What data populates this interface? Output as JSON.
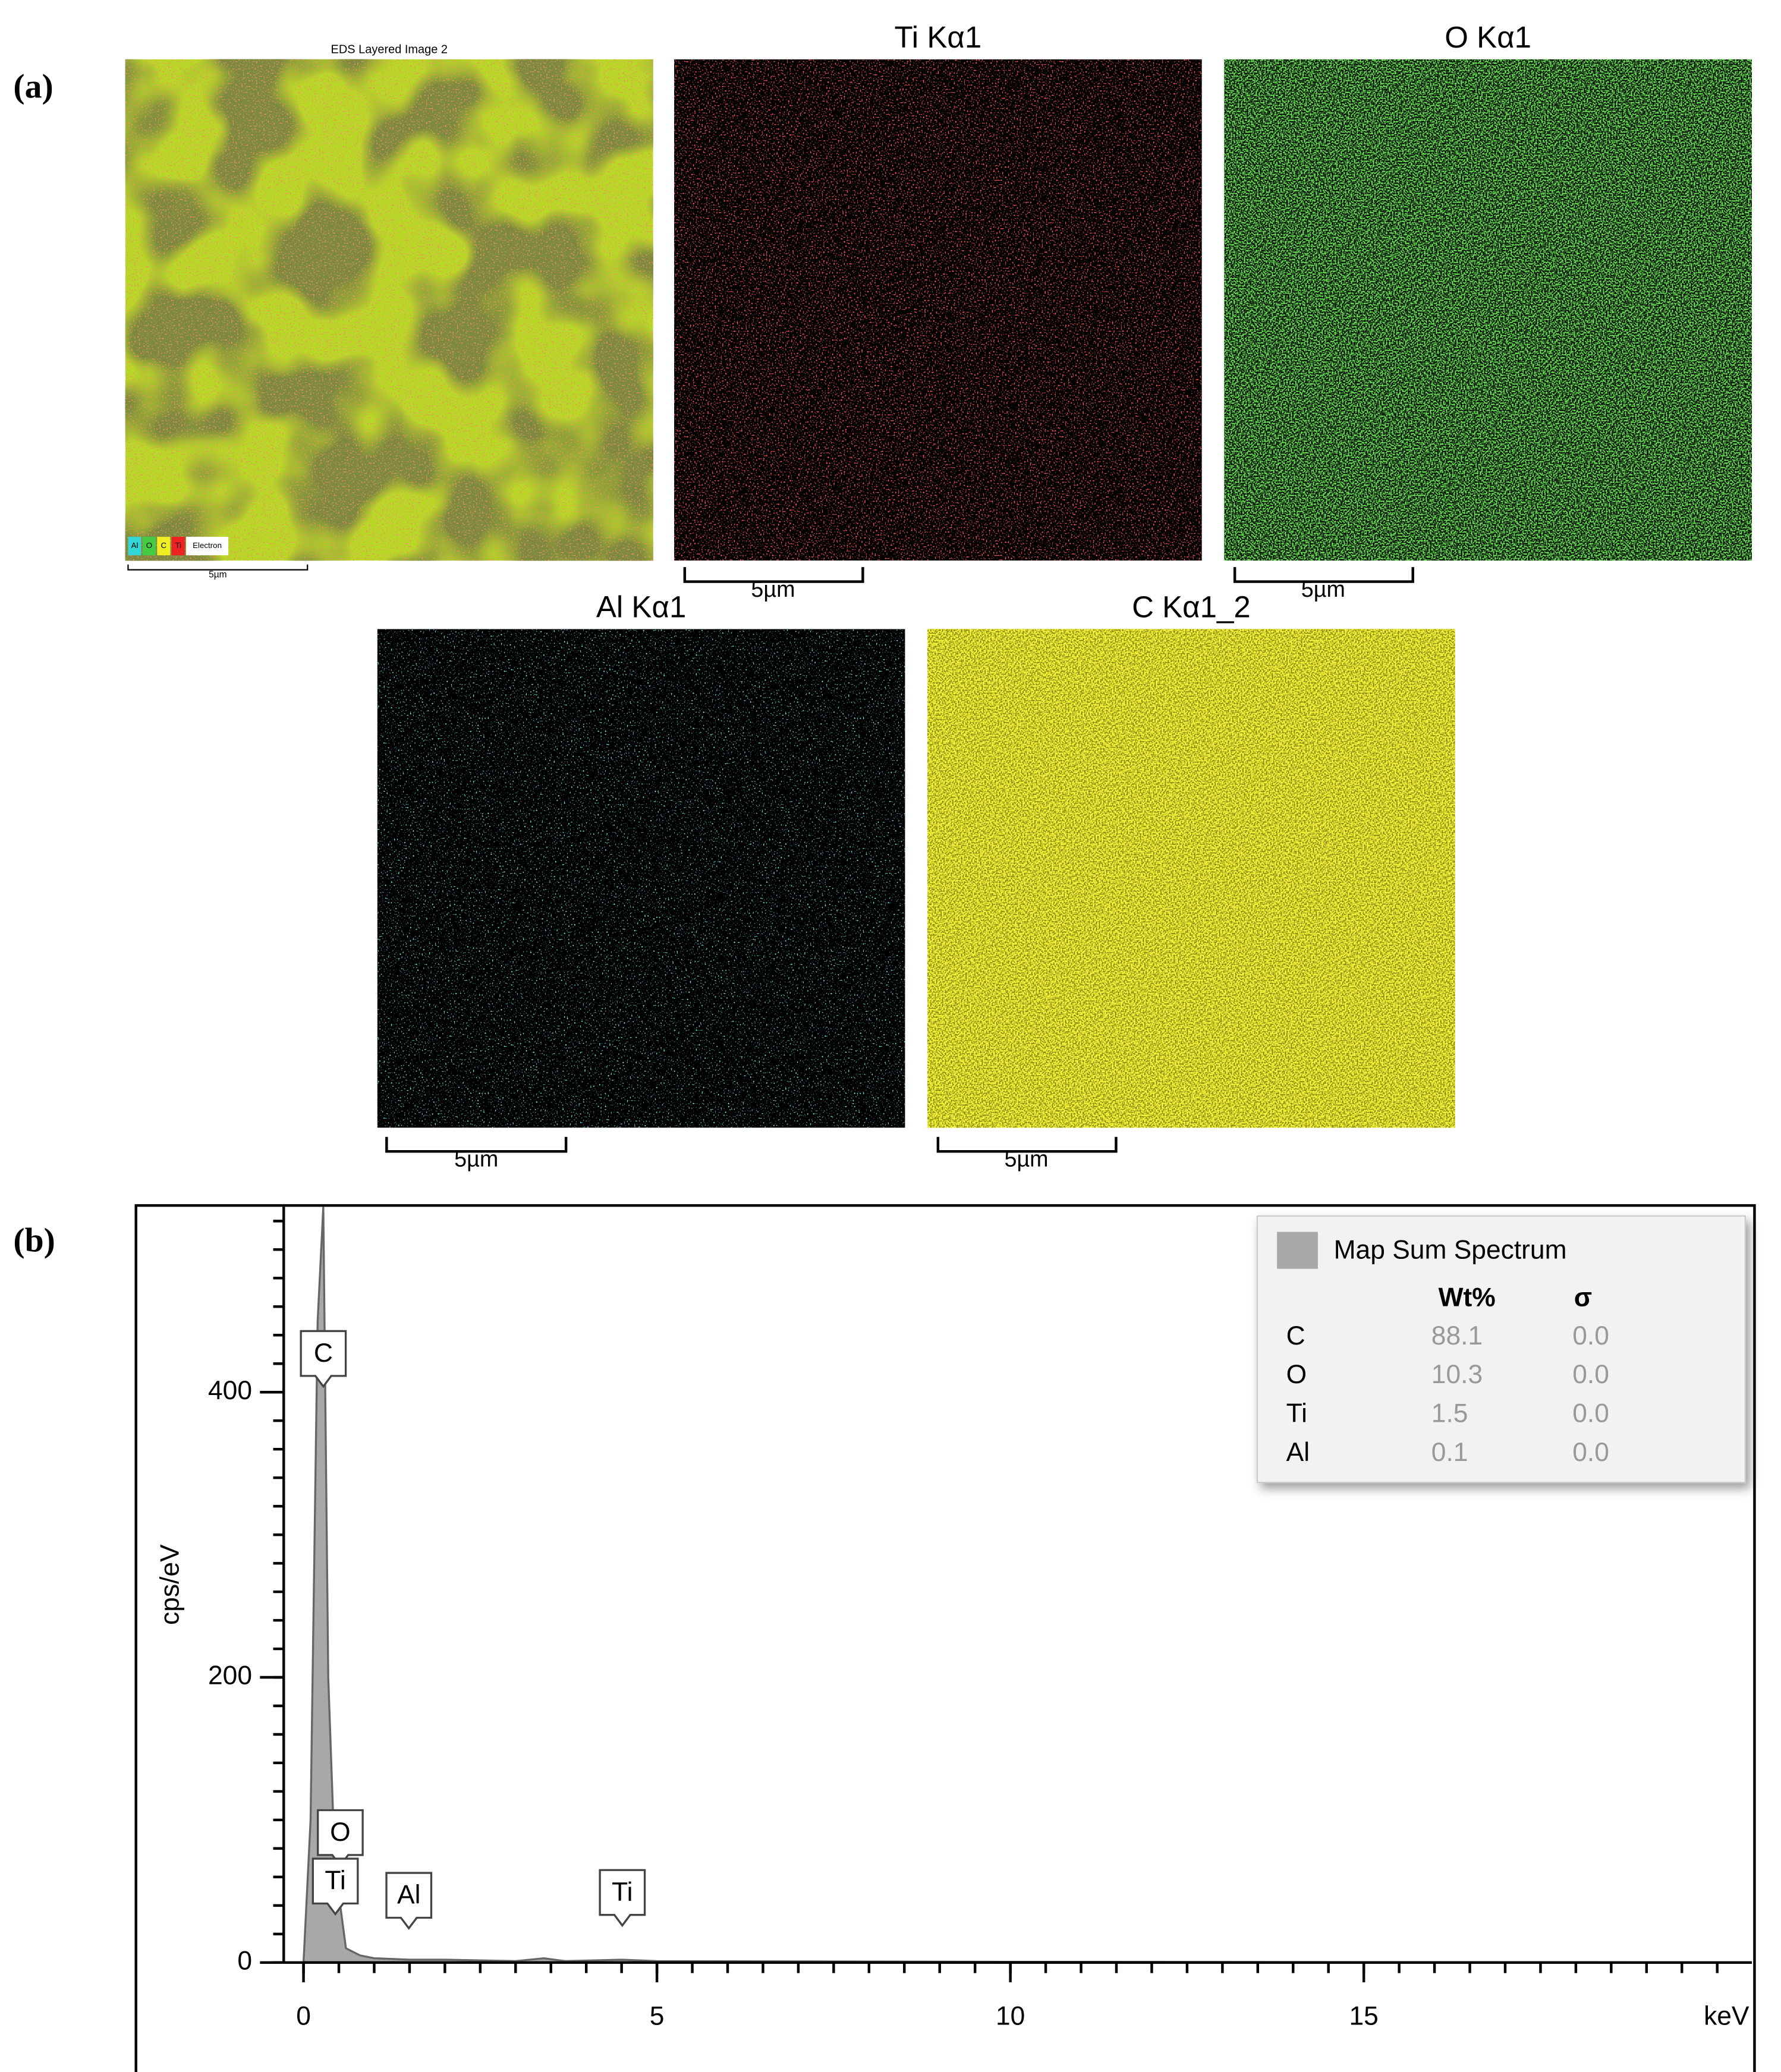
{
  "panel_labels": [
    "(a)",
    "(b)"
  ],
  "maps": [
    {
      "title": "EDS Layered Image 2",
      "scale_bar": "5µm",
      "channels": [
        "Al",
        "O",
        "C",
        "Ti",
        "Electron"
      ]
    },
    {
      "title": "Ti Kα1",
      "scale_bar": "5µm"
    },
    {
      "title": "O Kα1",
      "scale_bar": "5µm"
    },
    {
      "title": "Al Kα1",
      "scale_bar": "5µm"
    },
    {
      "title": "C Kα1_2",
      "scale_bar": "5µm"
    }
  ],
  "chart_data": {
    "type": "area",
    "x_label": "keV",
    "y_label": "cps/eV",
    "x": [
      0,
      0.1,
      0.2,
      0.28,
      0.35,
      0.45,
      0.52,
      0.6,
      0.8,
      1.0,
      1.5,
      2.0,
      3.0,
      3.4,
      3.7,
      4.5,
      5.0,
      10.0,
      20.4
    ],
    "values": [
      0,
      100,
      450,
      530,
      200,
      60,
      40,
      10,
      5,
      3,
      2,
      2,
      1,
      3,
      1,
      2,
      1,
      0.5,
      0
    ],
    "color": "#a8a8a8",
    "xlim": [
      -0.28,
      20.49
    ],
    "ylim": [
      0,
      530
    ],
    "xticks": [
      0,
      5,
      10,
      15
    ],
    "yticks": [
      0,
      200,
      400
    ],
    "minor_ticks": {
      "x": 0.5,
      "y": 20
    },
    "peaks": [
      {
        "label": "C",
        "x": 0.28,
        "y": 404
      },
      {
        "label": "O",
        "x": 0.52,
        "y": 68
      },
      {
        "label": "Ti",
        "x": 0.45,
        "y": 34
      },
      {
        "label": "Al",
        "x": 1.49,
        "y": 24
      },
      {
        "label": "Ti",
        "x": 4.51,
        "y": 26
      }
    ],
    "legend": {
      "title": "Map Sum Spectrum",
      "columns": [
        "Wt%",
        "σ"
      ],
      "rows": [
        [
          "C",
          "88.1",
          "0.0"
        ],
        [
          "O",
          "10.3",
          "0.0"
        ],
        [
          "Ti",
          "1.5",
          "0.0"
        ],
        [
          "Al",
          "0.1",
          "0.0"
        ]
      ]
    }
  }
}
